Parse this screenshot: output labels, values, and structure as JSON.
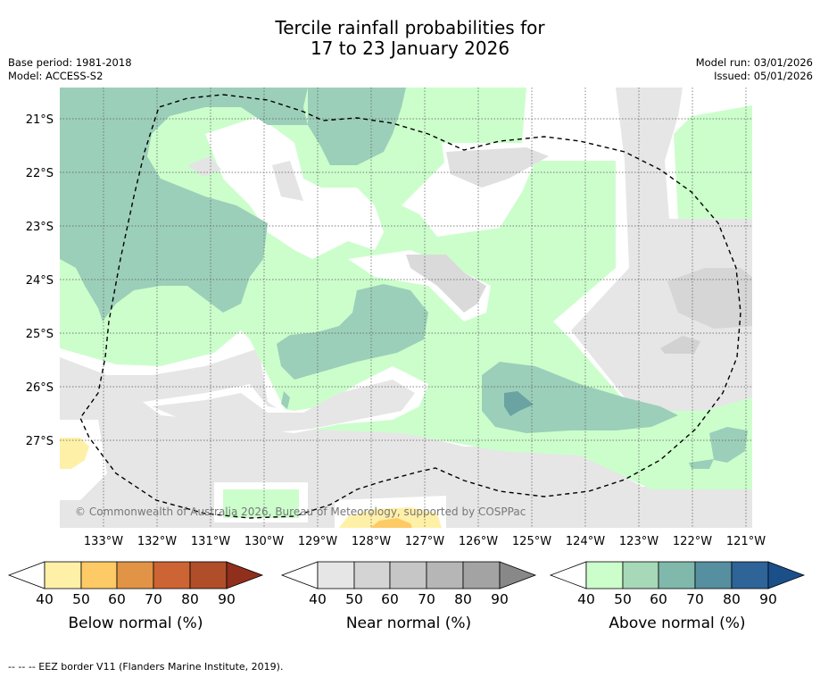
{
  "title": {
    "line1": "Tercile rainfall probabilities for",
    "line2": "17 to 23 January 2026"
  },
  "meta": {
    "base_period": "Base period: 1981-2018",
    "model": "Model: ACCESS-S2",
    "model_run": "Model run: 03/01/2026",
    "issued": "Issued: 05/01/2026"
  },
  "map": {
    "lat_labels": [
      "21°S",
      "22°S",
      "23°S",
      "24°S",
      "25°S",
      "26°S",
      "27°S"
    ],
    "lon_labels": [
      "133°W",
      "132°W",
      "131°W",
      "130°W",
      "129°W",
      "128°W",
      "127°W",
      "126°W",
      "125°W",
      "124°W",
      "123°W",
      "122°W",
      "121°W"
    ],
    "copyright": "© Commonwealth of Australia 2026, Bureau of Meteorology, supported by COSPPac"
  },
  "legend": {
    "ticks": [
      "40",
      "50",
      "60",
      "70",
      "80",
      "90"
    ],
    "below": {
      "label": "Below normal (%)",
      "colors": [
        "#ffffff",
        "#fff0a8",
        "#fdca65",
        "#e19445",
        "#cd6433",
        "#b04e29",
        "#8f2f1c"
      ]
    },
    "near": {
      "label": "Near normal (%)",
      "colors": [
        "#ffffff",
        "#e6e6e6",
        "#d4d4d4",
        "#c6c6c6",
        "#b6b6b6",
        "#a3a3a3",
        "#888888"
      ]
    },
    "above": {
      "label": "Above normal (%)",
      "colors": [
        "#ffffff",
        "#ccfecc",
        "#a7d8b8",
        "#80b8ab",
        "#568f9f",
        "#2e6498",
        "#1a4f8a"
      ]
    }
  },
  "footer": "-- -- -- EEZ border V11 (Flanders Marine Institute, 2019)."
}
